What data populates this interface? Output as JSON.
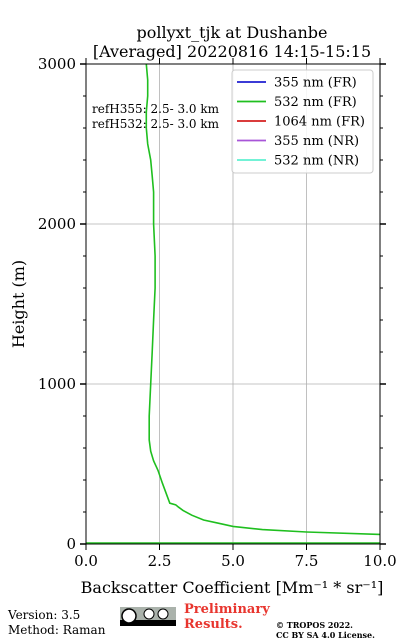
{
  "chart_data": {
    "type": "line",
    "title_line1": "pollyxt_tjk at Dushanbe",
    "title_line2": "[Averaged] 20220816 14:15-15:15",
    "xlabel": "Backscatter Coefficient [Mm⁻¹ * sr⁻¹]",
    "ylabel": "Height (m)",
    "xlim": [
      0,
      10
    ],
    "ylim": [
      0,
      3000
    ],
    "xticks": [
      "0.0",
      "2.5",
      "5.0",
      "7.5",
      "10.0"
    ],
    "xtick_values": [
      0,
      2.5,
      5,
      7.5,
      10
    ],
    "yticks": [
      "0",
      "1000",
      "2000",
      "3000"
    ],
    "ytick_values": [
      0,
      1000,
      2000,
      3000
    ],
    "grid": true,
    "legend_position": "top-right",
    "annotations": [
      "refH355:  2.5- 3.0 km",
      "refH532:  2.5- 3.0 km"
    ],
    "series": [
      {
        "name": "355 nm (FR)",
        "color": "#1f1fd0",
        "x": [],
        "y": []
      },
      {
        "name": "532 nm (FR)",
        "color": "#1fbf1f",
        "x": [
          10.0,
          7.5,
          6.0,
          5.0,
          4.5,
          4.0,
          3.6,
          3.3,
          3.15,
          3.05,
          2.85,
          2.6,
          2.45,
          2.3,
          2.2,
          2.15,
          2.15,
          2.2,
          2.25,
          2.3,
          2.35,
          2.35,
          2.3,
          2.3,
          2.3,
          2.25,
          2.2,
          2.1,
          2.05,
          2.05,
          2.1,
          2.1,
          2.05
        ],
        "y": [
          60,
          75,
          90,
          110,
          130,
          150,
          180,
          210,
          230,
          245,
          255,
          380,
          460,
          520,
          580,
          650,
          800,
          1000,
          1200,
          1400,
          1600,
          1800,
          2000,
          2100,
          2200,
          2300,
          2400,
          2500,
          2600,
          2700,
          2800,
          2900,
          3000
        ]
      },
      {
        "name": "1064 nm (FR)",
        "color": "#d42020",
        "x": [],
        "y": []
      },
      {
        "name": "355 nm (NR)",
        "color": "#a855d8",
        "x": [],
        "y": []
      },
      {
        "name": "532 nm (NR)",
        "color": "#5ff0d0",
        "x": [],
        "y": []
      }
    ]
  },
  "footer": {
    "version": "Version: 3.5",
    "method": "Method: Raman",
    "preliminary_line1": "Preliminary",
    "preliminary_line2": "Results.",
    "copyright_line1": "© TROPOS 2022.",
    "copyright_line2": "CC BY SA 4.0 License.",
    "license_badge": "cc-by-sa-badge-icon"
  }
}
